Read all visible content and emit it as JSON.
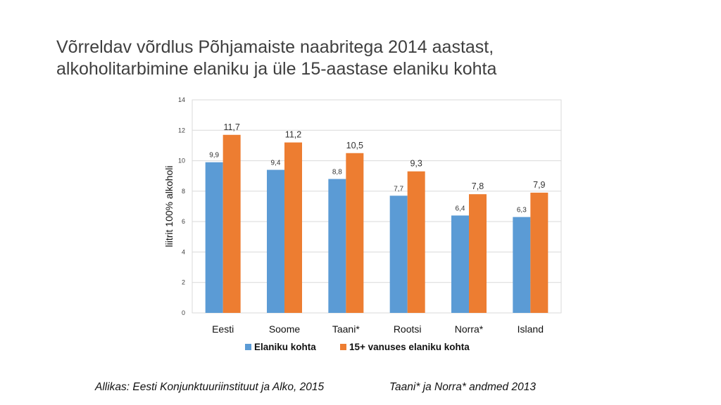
{
  "title": {
    "line1": "Võrreldav võrdlus Põhjamaiste naabritega 2014 aastast,",
    "line2": "alkoholitarbimine elaniku ja üle 15-aastase elaniku kohta"
  },
  "footer": {
    "source": "Allikas: Eesti Konjunktuuriinstituut ja Alko, 2015",
    "note": "Taani* ja Norra* andmed 2013"
  },
  "chart_data": {
    "type": "bar",
    "categories": [
      "Eesti",
      "Soome",
      "Taani*",
      "Rootsi",
      "Norra*",
      "Island"
    ],
    "series": [
      {
        "name": "Elaniku kohta",
        "color": "#5b9bd5",
        "values": [
          9.9,
          9.4,
          8.8,
          7.7,
          6.4,
          6.3
        ],
        "labels": [
          "9,9",
          "9,4",
          "8,8",
          "7,7",
          "6,4",
          "6,3"
        ]
      },
      {
        "name": "15+ vanuses elaniku kohta",
        "color": "#ed7d31",
        "values": [
          11.7,
          11.2,
          10.5,
          9.3,
          7.8,
          7.9
        ],
        "labels": [
          "11,7",
          "11,2",
          "10,5",
          "9,3",
          "7,8",
          "7,9"
        ]
      }
    ],
    "ylabel": "liitrit 100% alkoholi",
    "ylim": [
      0,
      14
    ],
    "yticks": [
      "0",
      "2",
      "4",
      "6",
      "8",
      "10",
      "12",
      "14"
    ],
    "grid": true,
    "legend_position": "bottom"
  }
}
